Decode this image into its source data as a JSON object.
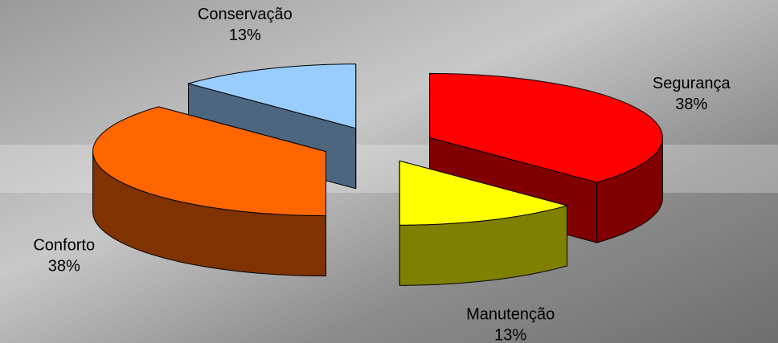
{
  "chart_data": {
    "type": "pie3d",
    "categories": [
      "Segurança",
      "Manutenção",
      "Conforto",
      "Conservação"
    ],
    "values": [
      38,
      13,
      38,
      13
    ],
    "value_labels": [
      "38%",
      "13%",
      "38%",
      "13%"
    ],
    "colors": [
      "#ff0000",
      "#ffff00",
      "#ff6600",
      "#99ccff"
    ]
  }
}
